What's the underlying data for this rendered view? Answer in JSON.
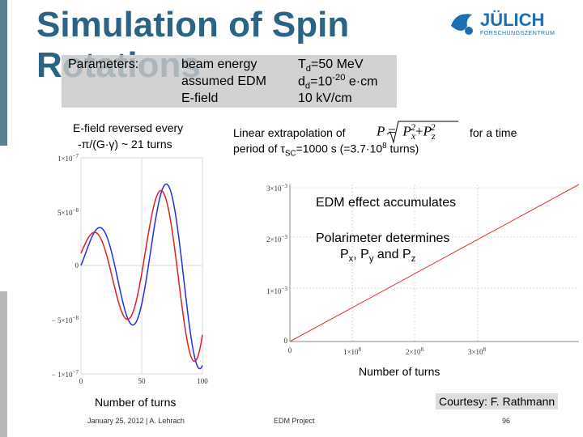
{
  "title": "Simulation of Spin Rotations",
  "logo": {
    "name": "JÜLICH",
    "subtitle": "FORSCHUNGSZENTRUM"
  },
  "parameters": {
    "label": "Parameters:",
    "rows": [
      {
        "name": "beam energy",
        "value": [
          "T",
          "d",
          "=50 MeV"
        ]
      },
      {
        "name": "assumed EDM",
        "value": [
          "d",
          "d",
          "=10",
          "-20",
          " e·cm"
        ]
      },
      {
        "name": "E-field",
        "value": [
          "10 kV/cm"
        ]
      }
    ]
  },
  "left_note": [
    "E-field reversed every",
    "-π/(G·γ) ~ 21 turns"
  ],
  "left_plot": {
    "yticks": [
      [
        "1×10",
        "−7"
      ],
      [
        "5×10",
        "−8"
      ],
      [
        "0"
      ],
      [
        "− 5×10",
        "−8"
      ],
      [
        "− 1×10",
        "−7"
      ]
    ],
    "xticks": [
      [
        "0"
      ],
      [
        "50"
      ],
      [
        "100"
      ]
    ],
    "xlabel": "Number of turns"
  },
  "right_text": {
    "line1": "Linear extrapolation of",
    "formula": [
      "P",
      "=",
      "P",
      "x",
      "2",
      "+",
      "P",
      "z",
      "2"
    ],
    "line1_end": "for a time",
    "line2": [
      "period of τ",
      "SC",
      "=1000 s (=3.7·10",
      "8",
      " turns)"
    ]
  },
  "right_plot": {
    "yticks": [
      [
        "3×10",
        "−3"
      ],
      [
        "2×10",
        "−3"
      ],
      [
        "1×10",
        "−3"
      ],
      [
        "0"
      ]
    ],
    "xticks": [
      [
        "0"
      ],
      [
        "1×10",
        "8"
      ],
      [
        "2×10",
        "8"
      ],
      [
        "3×10",
        "8"
      ]
    ],
    "xlabel": "Number of turns"
  },
  "annotations": {
    "edm": "EDM effect accumulates",
    "polarimeter": "Polarimeter determines",
    "components": [
      "P",
      "x",
      ", P",
      "y",
      " and P",
      "z"
    ]
  },
  "courtesy": "Courtesy: F. Rathmann",
  "footer": {
    "date": "January 25, 2012 | A. Lehrach",
    "project": "EDM Project",
    "page": "96"
  }
}
